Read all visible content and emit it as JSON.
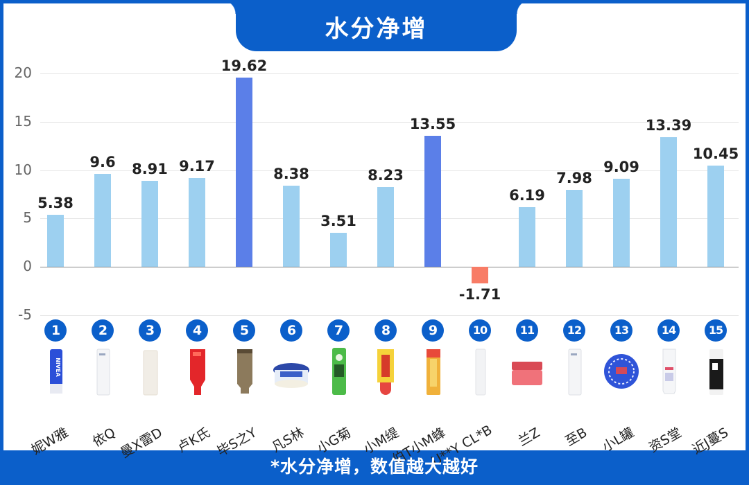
{
  "title": "水分净增",
  "footer_note": "*水分净增，数值越大越好",
  "colors": {
    "frame": "#0b5fca",
    "bar_default": "#9dd0f0",
    "bar_highlight": "#5b7fe8",
    "bar_negative": "#f87c66"
  },
  "y_ticks": [
    "20",
    "15",
    "10",
    "5",
    "0",
    "-5"
  ],
  "chart_data": {
    "type": "bar",
    "title": "水分净增",
    "subtitle": "*水分净增，数值越大越好",
    "xlabel": "",
    "ylabel": "",
    "ylim": [
      -5,
      20
    ],
    "yticks": [
      -5,
      0,
      5,
      10,
      15,
      20
    ],
    "grid": true,
    "categories": [
      "妮W雅",
      "依Q",
      "曼X雷D",
      "卢K氏",
      "毕S之Y",
      "凡S林",
      "小G菊",
      "小M缇",
      "伯T小M蜂",
      "U**Y CL*B",
      "兰Z",
      "至B",
      "小L罐",
      "资S堂",
      "近J蔓S"
    ],
    "values": [
      5.38,
      9.6,
      8.91,
      9.17,
      19.62,
      8.38,
      3.51,
      8.23,
      13.55,
      -1.71,
      6.19,
      7.98,
      9.09,
      13.39,
      10.45
    ],
    "highlighted_indices": [
      4,
      8
    ],
    "negative_indices": [
      9
    ]
  },
  "items": [
    {
      "rank": "1",
      "name": "妮W雅",
      "value": "5.38",
      "product_icon": "blue-lip-balm-stick"
    },
    {
      "rank": "2",
      "name": "依Q",
      "value": "9.6",
      "product_icon": "white-lip-balm-stick"
    },
    {
      "rank": "3",
      "name": "曼X雷D",
      "value": "8.91",
      "product_icon": "cream-lip-balm-stick"
    },
    {
      "rank": "4",
      "name": "卢K氏",
      "value": "9.17",
      "product_icon": "red-lip-tube"
    },
    {
      "rank": "5",
      "name": "毕S之Y",
      "value": "19.62",
      "product_icon": "bronze-lip-tube"
    },
    {
      "rank": "6",
      "name": "凡S林",
      "value": "8.38",
      "product_icon": "blue-jar"
    },
    {
      "rank": "7",
      "name": "小G菊",
      "value": "3.51",
      "product_icon": "green-lip-balm-stick"
    },
    {
      "rank": "8",
      "name": "小M缇",
      "value": "8.23",
      "product_icon": "yellow-lip-tube"
    },
    {
      "rank": "9",
      "name": "伯T小M蜂",
      "value": "13.55",
      "product_icon": "yellow-red-lip-balm-stick"
    },
    {
      "rank": "10",
      "name": "U**Y CL*B",
      "value": "-1.71",
      "product_icon": "slim-white-lip-stick"
    },
    {
      "rank": "11",
      "name": "兰Z",
      "value": "6.19",
      "product_icon": "pink-jar"
    },
    {
      "rank": "12",
      "name": "至B",
      "value": "7.98",
      "product_icon": "white-lip-balm-stick"
    },
    {
      "rank": "13",
      "name": "小L罐",
      "value": "9.09",
      "product_icon": "blue-round-tin"
    },
    {
      "rank": "14",
      "name": "资S堂",
      "value": "13.39",
      "product_icon": "white-lip-tube"
    },
    {
      "rank": "15",
      "name": "近J蔓S",
      "value": "10.45",
      "product_icon": "black-white-lip-balm-stick"
    }
  ]
}
